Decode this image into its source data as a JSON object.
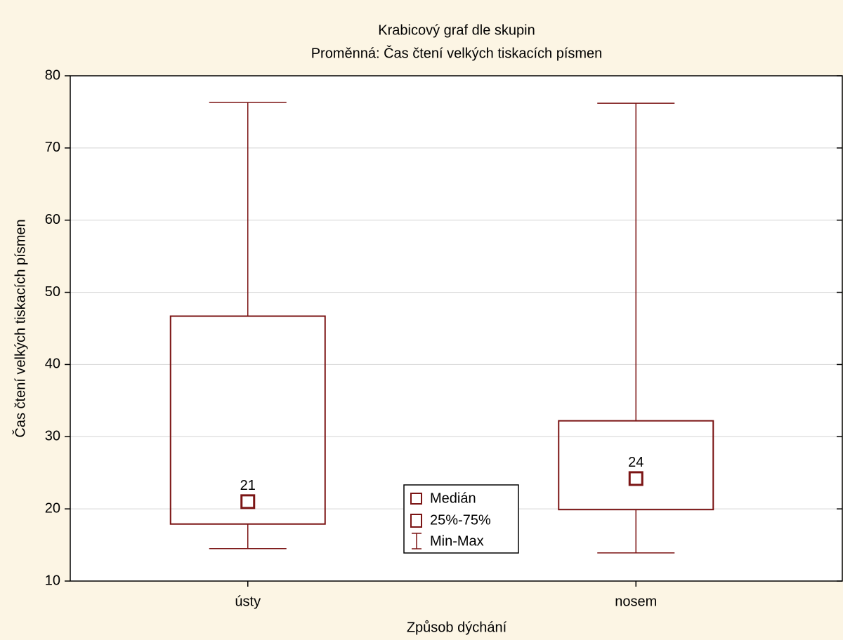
{
  "chart_data": {
    "type": "box",
    "title": "Krabicový graf dle skupin",
    "subtitle": "Proměnná: Čas čtení velkých tiskacích písmen",
    "xlabel": "Způsob dýchání",
    "ylabel": "Čas čtení velkých tiskacích písmen",
    "categories": [
      "ústy",
      "nosem"
    ],
    "min": [
      14.5,
      13.9
    ],
    "q1": [
      17.9,
      19.9
    ],
    "median": [
      21,
      24.2
    ],
    "value_labels": [
      "21",
      "24"
    ],
    "q3": [
      46.7,
      32.2
    ],
    "max": [
      76.3,
      76.2
    ],
    "color": "#7b1414",
    "ylim": [
      10,
      80
    ],
    "yticks": [
      10,
      20,
      30,
      40,
      50,
      60,
      70,
      80
    ],
    "grid": true,
    "legend": [
      "Medián",
      "25%-75%",
      "Min-Max"
    ],
    "legend_position": "bottom-center"
  }
}
